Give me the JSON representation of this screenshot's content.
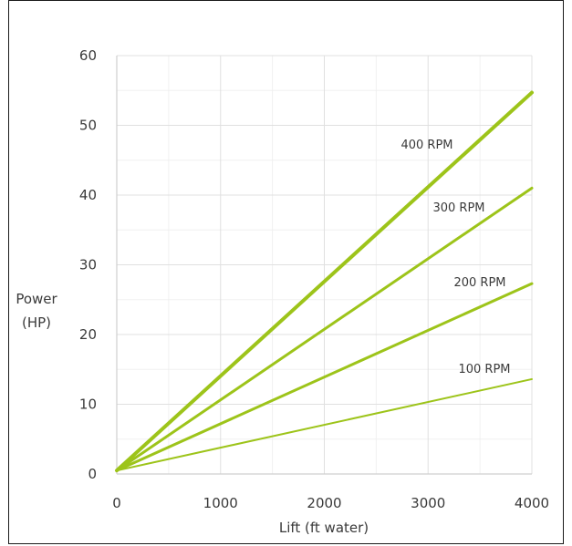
{
  "chart_data": {
    "type": "line",
    "title": "",
    "xlabel": "Lift (ft water)",
    "ylabel_lines": [
      "Power",
      "(HP)"
    ],
    "xlim": [
      0,
      4000
    ],
    "ylim": [
      0,
      60
    ],
    "x_ticks": [
      0,
      1000,
      2000,
      3000,
      4000
    ],
    "y_ticks": [
      0,
      10,
      20,
      30,
      40,
      50,
      60
    ],
    "x_minor_ticks": [
      500,
      1500,
      2500,
      3500
    ],
    "y_minor_ticks": [
      5,
      15,
      25,
      35,
      45,
      55
    ],
    "grid": true,
    "line_color": "#9dc41a",
    "series": [
      {
        "name": "400 RPM",
        "x": [
          0,
          4000
        ],
        "y": [
          0.5,
          54.7
        ]
      },
      {
        "name": "300 RPM",
        "x": [
          0,
          4000
        ],
        "y": [
          0.5,
          41.0
        ]
      },
      {
        "name": "200 RPM",
        "x": [
          0,
          4000
        ],
        "y": [
          0.5,
          27.3
        ]
      },
      {
        "name": "100 RPM",
        "x": [
          0,
          4000
        ],
        "y": [
          0.5,
          13.6
        ]
      }
    ]
  }
}
